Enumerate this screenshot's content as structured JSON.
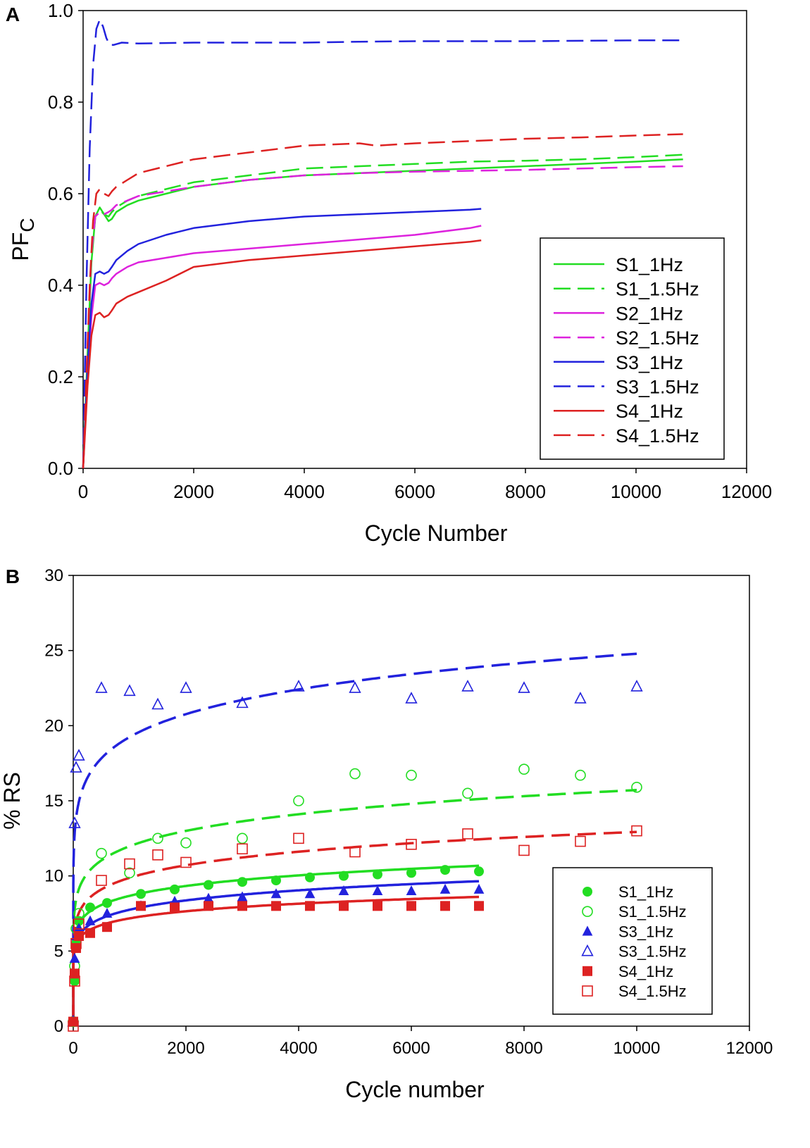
{
  "chart_data": [
    {
      "panel_label": "A",
      "type": "line",
      "xlabel": "Cycle Number",
      "ylabel_main": "PF",
      "ylabel_sub": "C",
      "xlim": [
        0,
        12000
      ],
      "ylim": [
        0,
        1.0
      ],
      "xticks": [
        "0",
        "2000",
        "4000",
        "6000",
        "8000",
        "10000",
        "12000"
      ],
      "yticks": [
        "0.0",
        "0.2",
        "0.4",
        "0.6",
        "0.8",
        "1.0"
      ],
      "legend_position": "bottom-right",
      "series": [
        {
          "name": "S1_1Hz",
          "color": "#22dd22",
          "dash": "solid",
          "points": [
            [
              0,
              0
            ],
            [
              80,
              0.25
            ],
            [
              150,
              0.45
            ],
            [
              220,
              0.55
            ],
            [
              300,
              0.57
            ],
            [
              380,
              0.555
            ],
            [
              460,
              0.54
            ],
            [
              520,
              0.545
            ],
            [
              600,
              0.56
            ],
            [
              800,
              0.575
            ],
            [
              1000,
              0.585
            ],
            [
              1500,
              0.6
            ],
            [
              2000,
              0.615
            ],
            [
              3000,
              0.63
            ],
            [
              4000,
              0.64
            ],
            [
              5000,
              0.645
            ],
            [
              6000,
              0.65
            ],
            [
              7000,
              0.655
            ],
            [
              8000,
              0.66
            ],
            [
              9000,
              0.665
            ],
            [
              10000,
              0.67
            ],
            [
              10850,
              0.675
            ]
          ]
        },
        {
          "name": "S1_1.5Hz",
          "color": "#22dd22",
          "dash": "dashed",
          "points": [
            [
              0,
              0
            ],
            [
              80,
              0.26
            ],
            [
              150,
              0.46
            ],
            [
              220,
              0.55
            ],
            [
              300,
              0.565
            ],
            [
              380,
              0.555
            ],
            [
              460,
              0.55
            ],
            [
              520,
              0.56
            ],
            [
              600,
              0.57
            ],
            [
              800,
              0.585
            ],
            [
              1000,
              0.595
            ],
            [
              1500,
              0.61
            ],
            [
              2000,
              0.625
            ],
            [
              3000,
              0.64
            ],
            [
              4000,
              0.655
            ],
            [
              5000,
              0.66
            ],
            [
              6000,
              0.665
            ],
            [
              7000,
              0.67
            ],
            [
              8000,
              0.672
            ],
            [
              9000,
              0.675
            ],
            [
              10000,
              0.68
            ],
            [
              10850,
              0.685
            ]
          ]
        },
        {
          "name": "S2_1Hz",
          "color": "#dd22dd",
          "dash": "solid",
          "points": [
            [
              0,
              0
            ],
            [
              80,
              0.2
            ],
            [
              150,
              0.33
            ],
            [
              220,
              0.4
            ],
            [
              300,
              0.405
            ],
            [
              380,
              0.4
            ],
            [
              460,
              0.405
            ],
            [
              520,
              0.415
            ],
            [
              600,
              0.425
            ],
            [
              800,
              0.44
            ],
            [
              1000,
              0.45
            ],
            [
              1500,
              0.46
            ],
            [
              2000,
              0.47
            ],
            [
              3000,
              0.48
            ],
            [
              4000,
              0.49
            ],
            [
              5000,
              0.5
            ],
            [
              6000,
              0.51
            ],
            [
              7000,
              0.525
            ],
            [
              7200,
              0.53
            ]
          ]
        },
        {
          "name": "S2_1.5Hz",
          "color": "#dd22dd",
          "dash": "dashed",
          "points": [
            [
              0,
              0
            ],
            [
              80,
              0.27
            ],
            [
              150,
              0.47
            ],
            [
              220,
              0.55
            ],
            [
              300,
              0.56
            ],
            [
              380,
              0.555
            ],
            [
              460,
              0.56
            ],
            [
              520,
              0.565
            ],
            [
              600,
              0.575
            ],
            [
              800,
              0.585
            ],
            [
              1000,
              0.595
            ],
            [
              1500,
              0.605
            ],
            [
              2000,
              0.615
            ],
            [
              3000,
              0.63
            ],
            [
              4000,
              0.64
            ],
            [
              5000,
              0.645
            ],
            [
              6000,
              0.648
            ],
            [
              7000,
              0.65
            ],
            [
              8000,
              0.652
            ],
            [
              9000,
              0.655
            ],
            [
              10000,
              0.658
            ],
            [
              10850,
              0.66
            ]
          ]
        },
        {
          "name": "S3_1Hz",
          "color": "#2222dd",
          "dash": "solid",
          "points": [
            [
              0,
              0
            ],
            [
              80,
              0.22
            ],
            [
              150,
              0.36
            ],
            [
              220,
              0.425
            ],
            [
              300,
              0.43
            ],
            [
              380,
              0.425
            ],
            [
              460,
              0.43
            ],
            [
              520,
              0.44
            ],
            [
              600,
              0.455
            ],
            [
              800,
              0.475
            ],
            [
              1000,
              0.49
            ],
            [
              1500,
              0.51
            ],
            [
              2000,
              0.525
            ],
            [
              3000,
              0.54
            ],
            [
              4000,
              0.55
            ],
            [
              5000,
              0.555
            ],
            [
              6000,
              0.56
            ],
            [
              7000,
              0.565
            ],
            [
              7200,
              0.567
            ]
          ]
        },
        {
          "name": "S3_1.5Hz",
          "color": "#2222dd",
          "dash": "dashed",
          "points": [
            [
              0,
              0
            ],
            [
              60,
              0.4
            ],
            [
              120,
              0.7
            ],
            [
              180,
              0.88
            ],
            [
              240,
              0.96
            ],
            [
              300,
              0.98
            ],
            [
              360,
              0.965
            ],
            [
              420,
              0.94
            ],
            [
              480,
              0.925
            ],
            [
              550,
              0.925
            ],
            [
              700,
              0.93
            ],
            [
              1000,
              0.928
            ],
            [
              2000,
              0.93
            ],
            [
              3000,
              0.93
            ],
            [
              4000,
              0.93
            ],
            [
              5000,
              0.932
            ],
            [
              6000,
              0.933
            ],
            [
              7000,
              0.933
            ],
            [
              8000,
              0.933
            ],
            [
              9000,
              0.934
            ],
            [
              10000,
              0.935
            ],
            [
              10850,
              0.935
            ]
          ]
        },
        {
          "name": "S4_1Hz",
          "color": "#dd2222",
          "dash": "solid",
          "points": [
            [
              0,
              0
            ],
            [
              80,
              0.18
            ],
            [
              150,
              0.29
            ],
            [
              220,
              0.335
            ],
            [
              300,
              0.34
            ],
            [
              380,
              0.33
            ],
            [
              460,
              0.335
            ],
            [
              520,
              0.345
            ],
            [
              600,
              0.36
            ],
            [
              800,
              0.375
            ],
            [
              1000,
              0.385
            ],
            [
              1500,
              0.41
            ],
            [
              2000,
              0.44
            ],
            [
              3000,
              0.455
            ],
            [
              4000,
              0.465
            ],
            [
              5000,
              0.475
            ],
            [
              6000,
              0.485
            ],
            [
              7000,
              0.495
            ],
            [
              7200,
              0.498
            ]
          ]
        },
        {
          "name": "S4_1.5Hz",
          "color": "#dd2222",
          "dash": "dashed",
          "points": [
            [
              0,
              0
            ],
            [
              60,
              0.2
            ],
            [
              120,
              0.4
            ],
            [
              180,
              0.54
            ],
            [
              240,
              0.6
            ],
            [
              300,
              0.61
            ],
            [
              380,
              0.6
            ],
            [
              460,
              0.595
            ],
            [
              520,
              0.605
            ],
            [
              600,
              0.615
            ],
            [
              800,
              0.63
            ],
            [
              1000,
              0.645
            ],
            [
              1500,
              0.66
            ],
            [
              2000,
              0.675
            ],
            [
              3000,
              0.69
            ],
            [
              4000,
              0.705
            ],
            [
              5000,
              0.71
            ],
            [
              5300,
              0.705
            ],
            [
              6000,
              0.71
            ],
            [
              7000,
              0.715
            ],
            [
              8000,
              0.72
            ],
            [
              9000,
              0.723
            ],
            [
              10000,
              0.727
            ],
            [
              10850,
              0.73
            ]
          ]
        }
      ]
    },
    {
      "panel_label": "B",
      "type": "scatter",
      "xlabel": "Cycle number",
      "ylabel": "% RS",
      "xlim": [
        0,
        12000
      ],
      "ylim": [
        0,
        30
      ],
      "xticks": [
        "0",
        "2000",
        "4000",
        "6000",
        "8000",
        "10000",
        "12000"
      ],
      "yticks": [
        "0",
        "5",
        "10",
        "15",
        "20",
        "25",
        "30"
      ],
      "legend_position": "bottom-right",
      "series": [
        {
          "name": "S1_1Hz",
          "color": "#22dd22",
          "marker": "circle",
          "filled": true,
          "x": [
            0,
            25,
            50,
            100,
            300,
            600,
            1200,
            1800,
            2400,
            3000,
            3600,
            4200,
            4800,
            5400,
            6000,
            6600,
            7200
          ],
          "y": [
            0.3,
            3,
            5.5,
            7,
            7.9,
            8.2,
            8.8,
            9.1,
            9.4,
            9.6,
            9.7,
            9.9,
            10,
            10.1,
            10.2,
            10.4,
            10.3
          ],
          "fit": {
            "a": 4.2,
            "b": 0.105,
            "dash": "solid",
            "xmax": 7200
          }
        },
        {
          "name": "S1_1.5Hz",
          "color": "#22dd22",
          "marker": "circle",
          "filled": false,
          "x": [
            0,
            25,
            50,
            100,
            500,
            1000,
            1500,
            2000,
            3000,
            4000,
            5000,
            6000,
            7000,
            8000,
            9000,
            10000
          ],
          "y": [
            0.3,
            4,
            6.5,
            7.5,
            11.5,
            10.2,
            12.5,
            12.2,
            12.5,
            15,
            16.8,
            16.7,
            15.5,
            17.1,
            16.7,
            15.9
          ],
          "fit": {
            "a": 5.3,
            "b": 0.118,
            "dash": "dashed",
            "xmax": 10000
          }
        },
        {
          "name": "S3_1Hz",
          "color": "#2222dd",
          "marker": "triangle",
          "filled": true,
          "x": [
            0,
            25,
            50,
            100,
            300,
            600,
            1200,
            1800,
            2400,
            3000,
            3600,
            4200,
            4800,
            5400,
            6000,
            6600,
            7200
          ],
          "y": [
            0.3,
            4.5,
            6,
            6.5,
            7,
            7.5,
            8,
            8.3,
            8.5,
            8.6,
            8.8,
            8.8,
            9,
            9,
            9,
            9.1,
            9.1
          ],
          "fit": {
            "a": 3.6,
            "b": 0.111,
            "dash": "solid",
            "xmax": 7200
          }
        },
        {
          "name": "S3_1.5Hz",
          "color": "#2222dd",
          "marker": "triangle",
          "filled": false,
          "x": [
            0,
            25,
            50,
            100,
            500,
            1000,
            1500,
            2000,
            3000,
            4000,
            5000,
            6000,
            7000,
            8000,
            9000,
            10000
          ],
          "y": [
            0.3,
            13.5,
            17.2,
            18,
            22.5,
            22.3,
            21.4,
            22.5,
            21.5,
            22.6,
            22.5,
            21.8,
            22.6,
            22.5,
            21.8,
            22.6
          ],
          "fit": {
            "a": 9.0,
            "b": 0.11,
            "dash": "dashed",
            "xmax": 10000
          }
        },
        {
          "name": "S4_1Hz",
          "color": "#dd2222",
          "marker": "square",
          "filled": true,
          "x": [
            0,
            25,
            50,
            100,
            300,
            600,
            1200,
            1800,
            2400,
            3000,
            3600,
            4200,
            4800,
            5400,
            6000,
            6600,
            7200
          ],
          "y": [
            0.3,
            3.5,
            5.2,
            6,
            6.2,
            6.6,
            8,
            7.9,
            8,
            8,
            8,
            8,
            8,
            8,
            8,
            8,
            8
          ],
          "fit": {
            "a": 3.8,
            "b": 0.092,
            "dash": "solid",
            "xmax": 7200
          }
        },
        {
          "name": "S4_1.5Hz",
          "color": "#dd2222",
          "marker": "square",
          "filled": false,
          "x": [
            0,
            25,
            50,
            100,
            500,
            1000,
            1500,
            2000,
            3000,
            4000,
            5000,
            6000,
            7000,
            8000,
            9000,
            10000
          ],
          "y": [
            0,
            3,
            5.5,
            6.8,
            9.7,
            10.8,
            11.4,
            10.9,
            11.8,
            12.5,
            11.6,
            12.1,
            12.8,
            11.7,
            12.3,
            13
          ],
          "fit": {
            "a": 4.4,
            "b": 0.117,
            "dash": "dashed",
            "xmax": 10000
          }
        }
      ]
    }
  ]
}
